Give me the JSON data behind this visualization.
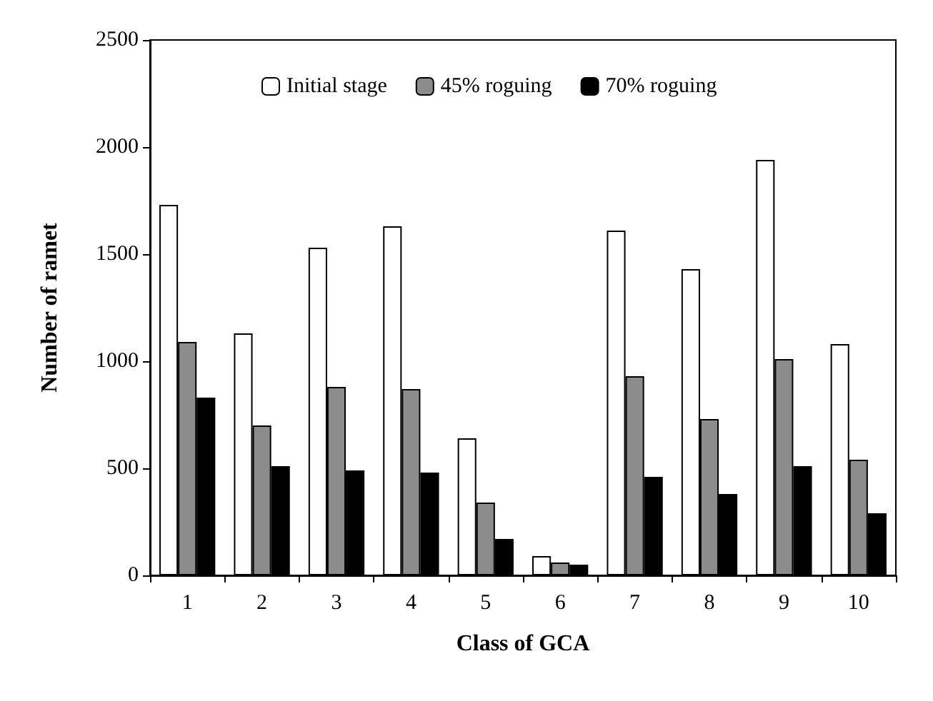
{
  "chart_data": {
    "type": "bar",
    "xlabel": "Class of GCA",
    "ylabel": "Number of ramet",
    "categories": [
      "1",
      "2",
      "3",
      "4",
      "5",
      "6",
      "7",
      "8",
      "9",
      "10"
    ],
    "series": [
      {
        "name": "Initial stage",
        "color": "#ffffff",
        "values": [
          1730,
          1130,
          1530,
          1630,
          640,
          90,
          1610,
          1430,
          1940,
          1080
        ]
      },
      {
        "name": "45% roguing",
        "color": "#8c8c8c",
        "values": [
          1090,
          700,
          880,
          870,
          340,
          60,
          930,
          730,
          1010,
          540
        ]
      },
      {
        "name": "70% roguing",
        "color": "#000000",
        "values": [
          830,
          510,
          490,
          480,
          170,
          50,
          460,
          380,
          510,
          290
        ]
      }
    ],
    "ylim": [
      0,
      2500
    ],
    "yticks": [
      0,
      500,
      1000,
      1500,
      2000,
      2500
    ],
    "grid": false,
    "legend": "top"
  }
}
